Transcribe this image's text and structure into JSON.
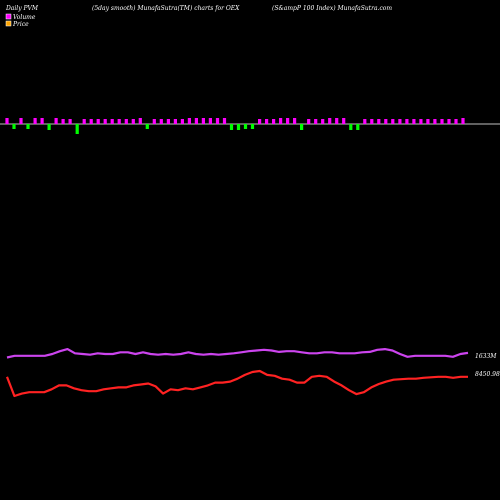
{
  "header": {
    "left": "Daily PVM",
    "center": "(5day smooth) MunafaSutra(TM) charts for OEX",
    "right": "(S&ampP 100  Index) MunafaSutra.com"
  },
  "legend": {
    "volume_label": "Volume",
    "price_label": "Price",
    "volume_color": "#ff00ff",
    "price_color": "#ffa500"
  },
  "chart_data": {
    "type": "line",
    "title": "(5day smooth) MunafaSutra(TM) charts for OEX",
    "volume_bars": {
      "directions": [
        1,
        -1,
        1,
        -1,
        1,
        1,
        -1,
        1,
        1,
        1,
        -1,
        1,
        1,
        1,
        1,
        1,
        1,
        1,
        1,
        1,
        -1,
        1,
        1,
        1,
        1,
        1,
        1,
        1,
        1,
        1,
        1,
        1,
        -1,
        -1,
        -1,
        -1,
        1,
        1,
        1,
        1,
        1,
        1,
        -1,
        1,
        1,
        1,
        1,
        1,
        1,
        -1,
        -1,
        1,
        1,
        1,
        1,
        1,
        1,
        1,
        1,
        1,
        1,
        1,
        1,
        1,
        1,
        1
      ],
      "magnitudes": [
        6,
        5,
        6,
        5,
        6,
        6,
        6,
        6,
        5,
        5,
        10,
        5,
        5,
        5,
        5,
        5,
        5,
        5,
        5,
        6,
        5,
        5,
        5,
        5,
        5,
        5,
        6,
        6,
        6,
        6,
        6,
        6,
        6,
        6,
        5,
        5,
        5,
        5,
        5,
        6,
        6,
        6,
        6,
        5,
        5,
        5,
        6,
        6,
        6,
        6,
        6,
        5,
        5,
        5,
        5,
        5,
        5,
        5,
        5,
        5,
        5,
        5,
        5,
        5,
        5,
        6
      ],
      "up_color": "#ff00ff",
      "down_color": "#00ff00"
    },
    "volume_line": {
      "name": "Volume",
      "color": "#cc44ee",
      "end_label": "1633M",
      "values": [
        0.5,
        0.55,
        0.55,
        0.55,
        0.55,
        0.55,
        0.6,
        0.68,
        0.74,
        0.62,
        0.6,
        0.58,
        0.62,
        0.6,
        0.6,
        0.65,
        0.65,
        0.6,
        0.65,
        0.6,
        0.58,
        0.6,
        0.58,
        0.6,
        0.65,
        0.6,
        0.58,
        0.6,
        0.58,
        0.6,
        0.62,
        0.65,
        0.68,
        0.7,
        0.72,
        0.7,
        0.66,
        0.68,
        0.68,
        0.65,
        0.62,
        0.62,
        0.65,
        0.65,
        0.62,
        0.62,
        0.62,
        0.65,
        0.66,
        0.72,
        0.74,
        0.7,
        0.6,
        0.52,
        0.55,
        0.55,
        0.55,
        0.55,
        0.55,
        0.52,
        0.6,
        0.63
      ]
    },
    "price_line": {
      "name": "Price",
      "color": "#ff2222",
      "end_label": "8450.98",
      "values": [
        0.4,
        0.0,
        0.05,
        0.08,
        0.08,
        0.08,
        0.14,
        0.22,
        0.22,
        0.16,
        0.12,
        0.1,
        0.1,
        0.14,
        0.16,
        0.18,
        0.18,
        0.22,
        0.24,
        0.26,
        0.2,
        0.05,
        0.14,
        0.12,
        0.16,
        0.14,
        0.18,
        0.22,
        0.28,
        0.28,
        0.3,
        0.36,
        0.44,
        0.5,
        0.52,
        0.44,
        0.42,
        0.36,
        0.34,
        0.28,
        0.28,
        0.4,
        0.42,
        0.4,
        0.3,
        0.22,
        0.12,
        0.04,
        0.08,
        0.18,
        0.25,
        0.3,
        0.34,
        0.35,
        0.36,
        0.36,
        0.38,
        0.39,
        0.4,
        0.4,
        0.38,
        0.4,
        0.4
      ]
    }
  }
}
